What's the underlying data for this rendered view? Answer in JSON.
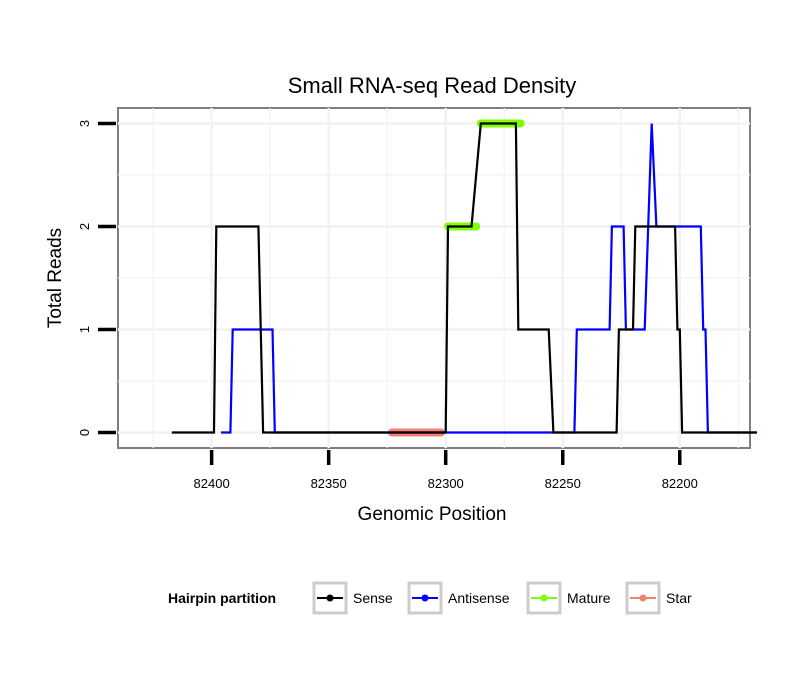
{
  "chart_data": {
    "type": "line",
    "title": "Small RNA-seq Read Density",
    "xlabel": "Genomic Position",
    "ylabel": "Total Reads",
    "xlim": [
      82440,
      82170
    ],
    "ylim": [
      -0.15,
      3.15
    ],
    "x_reversed": true,
    "xticks": [
      82400,
      82350,
      82300,
      82250,
      82200
    ],
    "xtick_labels": [
      "82400",
      "82350",
      "82300",
      "82250",
      "82200"
    ],
    "yticks": [
      0,
      1,
      2,
      3
    ],
    "ytick_labels": [
      "0",
      "1",
      "2",
      "3"
    ],
    "grid": true,
    "legend": {
      "title": "Hairpin partition",
      "position": "bottom",
      "entries": [
        "Sense",
        "Antisense",
        "Mature",
        "Star"
      ]
    },
    "series": [
      {
        "name": "Sense",
        "color": "#000000",
        "points": [
          [
            82417,
            0
          ],
          [
            82399,
            0
          ],
          [
            82398,
            2
          ],
          [
            82380,
            2
          ],
          [
            82378,
            0
          ],
          [
            82300,
            0
          ],
          [
            82299,
            2
          ],
          [
            82289,
            2
          ],
          [
            82285,
            3
          ],
          [
            82270,
            3
          ],
          [
            82269,
            1
          ],
          [
            82256,
            1
          ],
          [
            82254,
            0
          ],
          [
            82227,
            0
          ],
          [
            82226,
            1
          ],
          [
            82220,
            1
          ],
          [
            82219,
            2
          ],
          [
            82202,
            2
          ],
          [
            82201,
            1
          ],
          [
            82200,
            1
          ],
          [
            82199,
            0
          ],
          [
            82167,
            0
          ]
        ]
      },
      {
        "name": "Antisense",
        "color": "#0000ff",
        "points": [
          [
            82396,
            0
          ],
          [
            82392,
            0
          ],
          [
            82391,
            1
          ],
          [
            82374,
            1
          ],
          [
            82373,
            0
          ],
          [
            82300,
            0
          ],
          [
            82245,
            0
          ],
          [
            82244,
            1
          ],
          [
            82230,
            1
          ],
          [
            82229,
            2
          ],
          [
            82224,
            2
          ],
          [
            82223,
            1
          ],
          [
            82215,
            1
          ],
          [
            82212,
            3
          ],
          [
            82210,
            2
          ],
          [
            82191,
            2
          ],
          [
            82190,
            1
          ],
          [
            82189,
            1
          ],
          [
            82188,
            0
          ],
          [
            82167,
            0
          ]
        ]
      },
      {
        "name": "Mature",
        "color": "#7fff00",
        "segments": [
          {
            "x": [
              82299,
              82287
            ],
            "y": 2
          },
          {
            "x": [
              82285,
              82268
            ],
            "y": 3
          }
        ]
      },
      {
        "name": "Star",
        "color": "#f08070",
        "segments": [
          {
            "x": [
              82323,
              82302
            ],
            "y": 0
          }
        ]
      }
    ]
  }
}
